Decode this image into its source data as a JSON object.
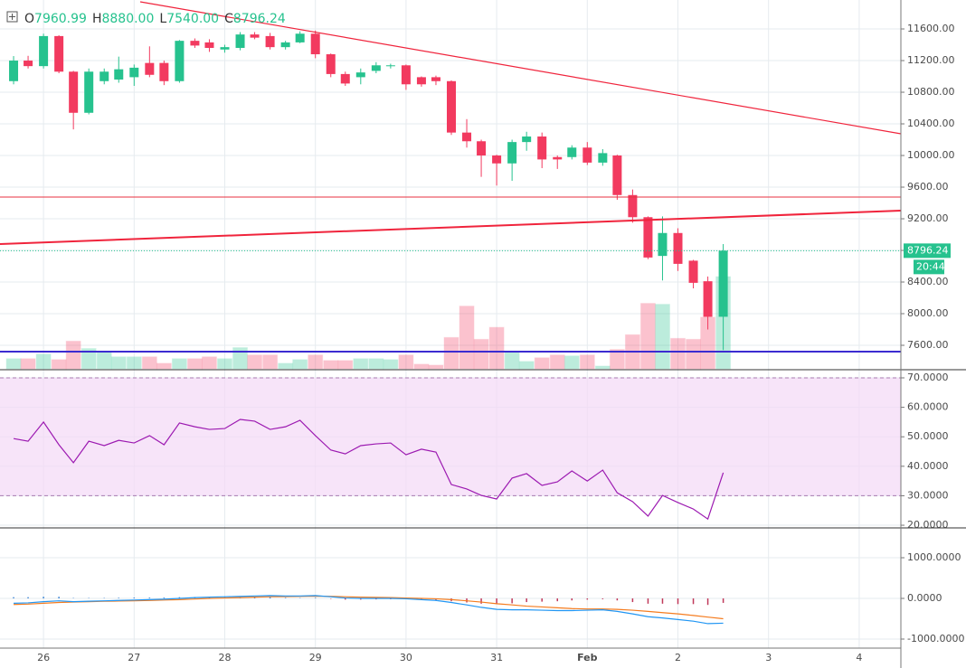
{
  "chart_data": {
    "type": "candlestick",
    "header": [
      {
        "label": "O",
        "value": "7960.99"
      },
      {
        "label": "H",
        "value": "8880.00"
      },
      {
        "label": "L",
        "value": "7540.00"
      },
      {
        "label": "C",
        "value": "8796.24"
      }
    ],
    "last_price_label": "8796.24",
    "countdown": "20:44",
    "up_color": "#26c28e",
    "down_color": "#f23a5f",
    "x": [
      25.67,
      25.83,
      26,
      26.17,
      26.33,
      26.5,
      26.67,
      26.83,
      27,
      27.17,
      27.33,
      27.5,
      27.67,
      27.83,
      28,
      28.17,
      28.33,
      28.5,
      28.67,
      28.83,
      29,
      29.17,
      29.33,
      29.5,
      29.67,
      29.83,
      30,
      30.17,
      30.33,
      30.5,
      30.67,
      30.83,
      31,
      31.17,
      31.33,
      31.5,
      31.67,
      31.83,
      32,
      32.17,
      32.33,
      32.5,
      32.67,
      32.83,
      33,
      33.17,
      33.33,
      33.5
    ],
    "open": [
      10940,
      11200,
      11130,
      11510,
      11060,
      10540,
      10940,
      10960,
      10990,
      11170,
      11170,
      10940,
      11450,
      11430,
      11340,
      11360,
      11530,
      11510,
      11370,
      11430,
      11540,
      11280,
      11030,
      10990,
      11070,
      11130,
      11140,
      10990,
      10990,
      10940,
      10290,
      10180,
      10000,
      9900,
      10170,
      10240,
      9980,
      9980,
      10100,
      9910,
      10000,
      9500,
      9220,
      8730,
      9020,
      8670,
      8410,
      7960.99
    ],
    "high": [
      11257,
      11260,
      11540,
      11520,
      11070,
      11100,
      11100,
      11250,
      11150,
      11380,
      11200,
      11460,
      11480,
      11470,
      11400,
      11560,
      11560,
      11550,
      11450,
      11570,
      11580,
      11290,
      11060,
      11100,
      11180,
      11160,
      11150,
      11000,
      11010,
      10950,
      10460,
      10200,
      10010,
      10200,
      10300,
      10290,
      10000,
      10130,
      10170,
      10080,
      10010,
      9570,
      9230,
      9230,
      9080,
      8680,
      8470,
      8880
    ],
    "low": [
      10900,
      11100,
      11100,
      11040,
      10330,
      10520,
      10900,
      10920,
      10880,
      10990,
      10890,
      10920,
      11360,
      11310,
      11300,
      11330,
      11470,
      11340,
      11340,
      11420,
      11230,
      10990,
      10880,
      10900,
      11040,
      11100,
      10830,
      10870,
      10890,
      10260,
      10100,
      9730,
      9620,
      9680,
      10060,
      9840,
      9830,
      9950,
      9880,
      9870,
      9440,
      9150,
      8690,
      8420,
      8540,
      8320,
      7800,
      7540
    ],
    "close": [
      11200,
      11130,
      11510,
      11060,
      10540,
      11060,
      11060,
      11090,
      11110,
      11020,
      10940,
      11450,
      11390,
      11360,
      11370,
      11530,
      11490,
      11370,
      11430,
      11540,
      11280,
      11030,
      10910,
      11050,
      11140,
      11140,
      10900,
      10900,
      10940,
      10290,
      10180,
      10000,
      9900,
      10170,
      10240,
      9950,
      9950,
      10100,
      9910,
      10030,
      9500,
      9220,
      8710,
      9020,
      8630,
      8390,
      7960,
      8796.24
    ],
    "volume": [
      11,
      11,
      16,
      10,
      30,
      22,
      18,
      13,
      13,
      13,
      6,
      11,
      11,
      13,
      11,
      23,
      15,
      15,
      6,
      10,
      15,
      9,
      9,
      11,
      11,
      10,
      15,
      5,
      4,
      34,
      68,
      32,
      45,
      18,
      8,
      12,
      15,
      14,
      15,
      3,
      21,
      37,
      71,
      70,
      33,
      32,
      56,
      100
    ],
    "rsi": [
      49.4,
      48.5,
      55,
      47.3,
      41.2,
      48.5,
      47,
      48.8,
      47.9,
      50.4,
      47.3,
      54.7,
      53.4,
      52.5,
      52.8,
      55.9,
      55.3,
      52.5,
      53.4,
      55.6,
      50.4,
      45.5,
      44.2,
      47,
      47.6,
      47.9,
      43.9,
      45.8,
      44.8,
      33.8,
      32.3,
      30.1,
      28.9,
      36,
      37.5,
      33.5,
      34.7,
      38.4,
      35,
      38.7,
      31,
      28,
      23.1,
      30.1,
      27.7,
      25.5,
      22.1,
      37.8
    ],
    "macd": [
      -120,
      -110,
      -80,
      -60,
      -80,
      -70,
      -60,
      -50,
      -40,
      -30,
      -20,
      0,
      20,
      30,
      40,
      50,
      60,
      70,
      60,
      60,
      70,
      40,
      10,
      0,
      0,
      0,
      -10,
      -30,
      -50,
      -100,
      -160,
      -220,
      -270,
      -280,
      -280,
      -290,
      -300,
      -300,
      -290,
      -280,
      -320,
      -380,
      -450,
      -480,
      -520,
      -560,
      -620,
      -610
    ],
    "signal": [
      -150,
      -140,
      -120,
      -100,
      -90,
      -80,
      -70,
      -65,
      -60,
      -50,
      -40,
      -30,
      -15,
      0,
      10,
      20,
      30,
      40,
      45,
      50,
      55,
      50,
      40,
      30,
      25,
      20,
      10,
      0,
      -10,
      -30,
      -60,
      -90,
      -130,
      -160,
      -190,
      -210,
      -230,
      -250,
      -260,
      -260,
      -270,
      -290,
      -320,
      -350,
      -380,
      -420,
      -460,
      -500
    ],
    "histogram": [
      30,
      30,
      40,
      40,
      10,
      10,
      10,
      15,
      20,
      20,
      20,
      30,
      35,
      30,
      30,
      30,
      30,
      30,
      15,
      10,
      15,
      -10,
      -30,
      -30,
      -25,
      -20,
      -20,
      -30,
      -40,
      -70,
      -100,
      -130,
      -140,
      -120,
      -90,
      -80,
      -70,
      -50,
      -30,
      -20,
      -50,
      -90,
      -130,
      -130,
      -140,
      -140,
      -160,
      -110
    ],
    "xlim": [
      25.52,
      35.46
    ],
    "xticks": [
      26,
      27,
      28,
      29,
      30,
      31,
      {
        "value": 32,
        "label": "Feb"
      },
      {
        "value": 33,
        "label": "2"
      },
      {
        "value": 34,
        "label": "3"
      },
      {
        "value": 35,
        "label": "4"
      }
    ],
    "ylim": [
      7303,
      11966
    ],
    "yticks": [
      {
        "value": 7600,
        "label": "7600.00"
      },
      {
        "value": 8000,
        "label": "8000.00"
      },
      {
        "value": 8400,
        "label": "8400.00"
      },
      {
        "value": 8800,
        "label": "8800.00"
      },
      {
        "value": 9200,
        "label": "9200.00"
      },
      {
        "value": 9600,
        "label": "9600.00"
      },
      {
        "value": 10000,
        "label": "10000.00"
      },
      {
        "value": 10400,
        "label": "10400.00"
      },
      {
        "value": 10800,
        "label": "10800.00"
      },
      {
        "value": 11200,
        "label": "11200.00"
      },
      {
        "value": 11600,
        "label": "11600.00"
      }
    ],
    "volume_ylim": [
      0,
      400
    ],
    "rsi_ylim": [
      19.4,
      72.45
    ],
    "rsi_band": [
      30,
      70
    ],
    "rsi_yticks": [
      {
        "value": 20,
        "label": "20.0000"
      },
      {
        "value": 30,
        "label": "30.0000"
      },
      {
        "value": 40,
        "label": "40.0000"
      },
      {
        "value": 50,
        "label": "50.0000"
      },
      {
        "value": 60,
        "label": "60.0000"
      },
      {
        "value": 70,
        "label": "70.0000"
      }
    ],
    "macd_ylim": [
      -1222,
      1711
    ],
    "macd_yticks": [
      {
        "value": -1000,
        "label": "-1000.0000"
      },
      {
        "value": 0,
        "label": "0.0000"
      },
      {
        "value": 1000,
        "label": "1000.0000"
      }
    ],
    "grid": true
  }
}
